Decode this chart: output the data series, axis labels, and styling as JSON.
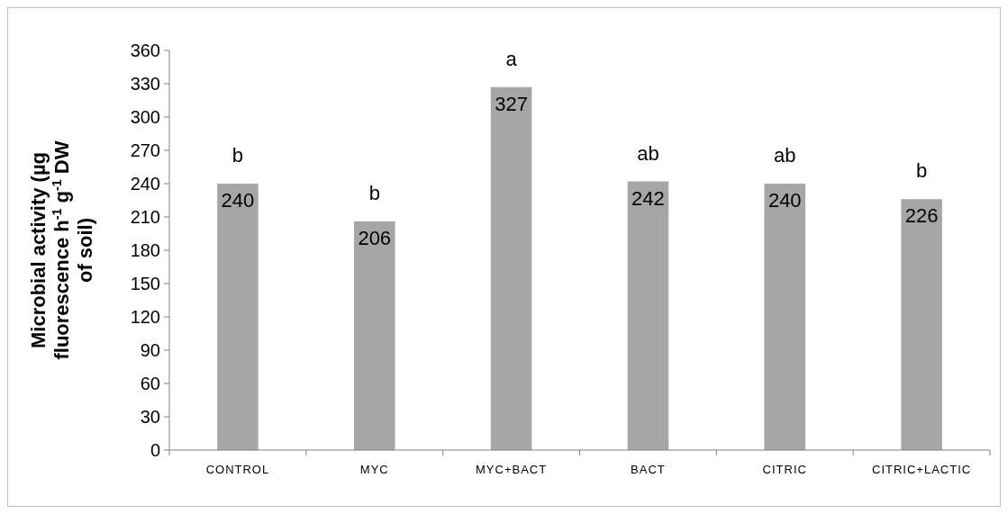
{
  "chart_data": {
    "type": "bar",
    "ylabel": "Microbial activity (µg fluorescence h$^{-1}$ g$^{-1}$ DW of soil)",
    "categories": [
      "CONTROL",
      "MYC",
      "MYC+BACT",
      "BACT",
      "CITRIC",
      "CITRIC+LACTIC"
    ],
    "values": [
      240,
      206,
      327,
      242,
      240,
      226
    ],
    "color": "#a6a6a6",
    "ylim": [
      0,
      360
    ],
    "yticks": [
      0,
      30,
      60,
      90,
      120,
      150,
      180,
      210,
      240,
      270,
      300,
      330,
      360
    ],
    "grid": false,
    "data_labels": true,
    "annotations": [
      {
        "text": "b",
        "x": "CONTROL",
        "y": 240
      },
      {
        "text": "b",
        "x": "MYC",
        "y": 206
      },
      {
        "text": "a",
        "x": "MYC+BACT",
        "y": 327
      },
      {
        "text": "ab",
        "x": "BACT",
        "y": 242
      },
      {
        "text": "ab",
        "x": "CITRIC",
        "y": 240
      },
      {
        "text": "b",
        "x": "CITRIC+LACTIC",
        "y": 226
      }
    ]
  }
}
